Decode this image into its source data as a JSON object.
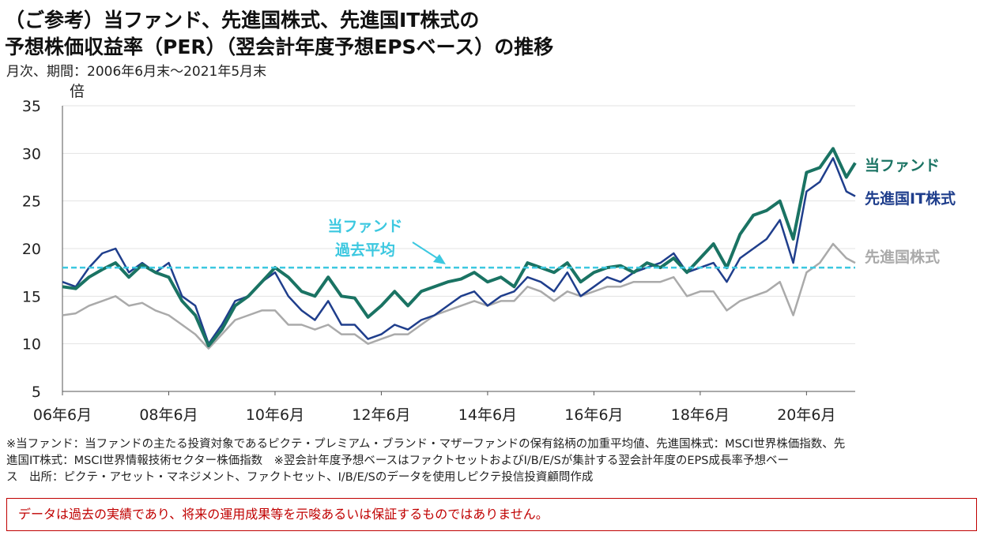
{
  "title_line1": "（ご参考）当ファンド、先進国株式、先進国IT株式の",
  "title_line2": "予想株価収益率（PER）（翌会計年度予想EPSベース）の推移",
  "subtitle": "月次、期間：2006年6月末～2021年5月末",
  "notes": [
    "※当ファンド：当ファンドの主たる投資対象であるピクテ・プレミアム・ブランド・マザーファンドの保有銘柄の加重平均値、先進国株式：MSCI世界株価指数、先",
    "進国IT株式：MSCI世界情報技術セクター株価指数　※翌会計年度予想ベースはファクトセットおよびI/B/E/Sが集計する翌会計年度のEPS成長率予想ベー",
    "ス　出所：ピクテ・アセット・マネジメント、ファクトセット、I/B/E/Sのデータを使用しピクテ投信投資顧問作成"
  ],
  "disclaimer": "データは過去の実績であり、将来の運用成果等を示唆あるいは保証するものではありません。",
  "chart_data": {
    "type": "line",
    "ylabel": "倍",
    "ylim": [
      5,
      35
    ],
    "yticks": [
      5,
      10,
      15,
      20,
      25,
      30,
      35
    ],
    "x_range": [
      "2006-06",
      "2021-05"
    ],
    "xticks": [
      {
        "date": "2006-06",
        "label": "06年6月"
      },
      {
        "date": "2008-06",
        "label": "08年6月"
      },
      {
        "date": "2010-06",
        "label": "10年6月"
      },
      {
        "date": "2012-06",
        "label": "12年6月"
      },
      {
        "date": "2014-06",
        "label": "14年6月"
      },
      {
        "date": "2016-06",
        "label": "16年6月"
      },
      {
        "date": "2018-06",
        "label": "18年6月"
      },
      {
        "date": "2020-06",
        "label": "20年6月"
      }
    ],
    "grid": "horizontal",
    "series": [
      {
        "name": "当ファンド",
        "color": "#1a7363",
        "points": [
          [
            "2006-06",
            16.0
          ],
          [
            "2006-09",
            15.8
          ],
          [
            "2006-12",
            17.0
          ],
          [
            "2007-03",
            17.8
          ],
          [
            "2007-06",
            18.5
          ],
          [
            "2007-09",
            17.0
          ],
          [
            "2007-12",
            18.3
          ],
          [
            "2008-03",
            17.5
          ],
          [
            "2008-06",
            17.0
          ],
          [
            "2008-09",
            14.5
          ],
          [
            "2008-12",
            13.0
          ],
          [
            "2009-03",
            9.8
          ],
          [
            "2009-06",
            11.5
          ],
          [
            "2009-09",
            14.0
          ],
          [
            "2009-12",
            15.0
          ],
          [
            "2010-03",
            16.5
          ],
          [
            "2010-06",
            18.0
          ],
          [
            "2010-09",
            17.0
          ],
          [
            "2010-12",
            15.5
          ],
          [
            "2011-03",
            15.0
          ],
          [
            "2011-06",
            17.0
          ],
          [
            "2011-09",
            15.0
          ],
          [
            "2011-12",
            14.8
          ],
          [
            "2012-03",
            12.8
          ],
          [
            "2012-06",
            14.0
          ],
          [
            "2012-09",
            15.5
          ],
          [
            "2012-12",
            14.0
          ],
          [
            "2013-03",
            15.5
          ],
          [
            "2013-06",
            16.0
          ],
          [
            "2013-09",
            16.5
          ],
          [
            "2013-12",
            16.8
          ],
          [
            "2014-03",
            17.5
          ],
          [
            "2014-06",
            16.5
          ],
          [
            "2014-09",
            17.0
          ],
          [
            "2014-12",
            16.0
          ],
          [
            "2015-03",
            18.5
          ],
          [
            "2015-06",
            18.0
          ],
          [
            "2015-09",
            17.5
          ],
          [
            "2015-12",
            18.5
          ],
          [
            "2016-03",
            16.5
          ],
          [
            "2016-06",
            17.5
          ],
          [
            "2016-09",
            18.0
          ],
          [
            "2016-12",
            18.2
          ],
          [
            "2017-03",
            17.5
          ],
          [
            "2017-06",
            18.5
          ],
          [
            "2017-09",
            18.0
          ],
          [
            "2017-12",
            19.0
          ],
          [
            "2018-03",
            17.5
          ],
          [
            "2018-06",
            19.0
          ],
          [
            "2018-09",
            20.5
          ],
          [
            "2018-12",
            18.0
          ],
          [
            "2019-03",
            21.5
          ],
          [
            "2019-06",
            23.5
          ],
          [
            "2019-09",
            24.0
          ],
          [
            "2019-12",
            25.0
          ],
          [
            "2020-03",
            21.0
          ],
          [
            "2020-06",
            28.0
          ],
          [
            "2020-09",
            28.5
          ],
          [
            "2020-12",
            30.5
          ],
          [
            "2021-03",
            27.5
          ],
          [
            "2021-05",
            29.0
          ]
        ]
      },
      {
        "name": "先進国IT株式",
        "color": "#1f3e8c",
        "points": [
          [
            "2006-06",
            16.5
          ],
          [
            "2006-09",
            16.0
          ],
          [
            "2006-12",
            18.0
          ],
          [
            "2007-03",
            19.5
          ],
          [
            "2007-06",
            20.0
          ],
          [
            "2007-09",
            17.5
          ],
          [
            "2007-12",
            18.5
          ],
          [
            "2008-03",
            17.5
          ],
          [
            "2008-06",
            18.5
          ],
          [
            "2008-09",
            15.0
          ],
          [
            "2008-12",
            14.0
          ],
          [
            "2009-03",
            10.0
          ],
          [
            "2009-06",
            12.0
          ],
          [
            "2009-09",
            14.5
          ],
          [
            "2009-12",
            15.0
          ],
          [
            "2010-03",
            16.5
          ],
          [
            "2010-06",
            17.5
          ],
          [
            "2010-09",
            15.0
          ],
          [
            "2010-12",
            13.5
          ],
          [
            "2011-03",
            12.5
          ],
          [
            "2011-06",
            14.5
          ],
          [
            "2011-09",
            12.0
          ],
          [
            "2011-12",
            12.0
          ],
          [
            "2012-03",
            10.5
          ],
          [
            "2012-06",
            11.0
          ],
          [
            "2012-09",
            12.0
          ],
          [
            "2012-12",
            11.5
          ],
          [
            "2013-03",
            12.5
          ],
          [
            "2013-06",
            13.0
          ],
          [
            "2013-09",
            14.0
          ],
          [
            "2013-12",
            15.0
          ],
          [
            "2014-03",
            15.5
          ],
          [
            "2014-06",
            14.0
          ],
          [
            "2014-09",
            15.0
          ],
          [
            "2014-12",
            15.5
          ],
          [
            "2015-03",
            17.0
          ],
          [
            "2015-06",
            16.5
          ],
          [
            "2015-09",
            15.5
          ],
          [
            "2015-12",
            17.5
          ],
          [
            "2016-03",
            15.0
          ],
          [
            "2016-06",
            16.0
          ],
          [
            "2016-09",
            17.0
          ],
          [
            "2016-12",
            16.5
          ],
          [
            "2017-03",
            17.5
          ],
          [
            "2017-06",
            18.0
          ],
          [
            "2017-09",
            18.5
          ],
          [
            "2017-12",
            19.5
          ],
          [
            "2018-03",
            17.5
          ],
          [
            "2018-06",
            18.0
          ],
          [
            "2018-09",
            18.5
          ],
          [
            "2018-12",
            16.5
          ],
          [
            "2019-03",
            19.0
          ],
          [
            "2019-06",
            20.0
          ],
          [
            "2019-09",
            21.0
          ],
          [
            "2019-12",
            23.0
          ],
          [
            "2020-03",
            18.5
          ],
          [
            "2020-06",
            26.0
          ],
          [
            "2020-09",
            27.0
          ],
          [
            "2020-12",
            29.5
          ],
          [
            "2021-03",
            26.0
          ],
          [
            "2021-05",
            25.5
          ]
        ]
      },
      {
        "name": "先進国株式",
        "color": "#aaaaaa",
        "points": [
          [
            "2006-06",
            13.0
          ],
          [
            "2006-09",
            13.2
          ],
          [
            "2006-12",
            14.0
          ],
          [
            "2007-03",
            14.5
          ],
          [
            "2007-06",
            15.0
          ],
          [
            "2007-09",
            14.0
          ],
          [
            "2007-12",
            14.3
          ],
          [
            "2008-03",
            13.5
          ],
          [
            "2008-06",
            13.0
          ],
          [
            "2008-09",
            12.0
          ],
          [
            "2008-12",
            11.0
          ],
          [
            "2009-03",
            9.5
          ],
          [
            "2009-06",
            11.0
          ],
          [
            "2009-09",
            12.5
          ],
          [
            "2009-12",
            13.0
          ],
          [
            "2010-03",
            13.5
          ],
          [
            "2010-06",
            13.5
          ],
          [
            "2010-09",
            12.0
          ],
          [
            "2010-12",
            12.0
          ],
          [
            "2011-03",
            11.5
          ],
          [
            "2011-06",
            12.0
          ],
          [
            "2011-09",
            11.0
          ],
          [
            "2011-12",
            11.0
          ],
          [
            "2012-03",
            10.0
          ],
          [
            "2012-06",
            10.5
          ],
          [
            "2012-09",
            11.0
          ],
          [
            "2012-12",
            11.0
          ],
          [
            "2013-03",
            12.0
          ],
          [
            "2013-06",
            13.0
          ],
          [
            "2013-09",
            13.5
          ],
          [
            "2013-12",
            14.0
          ],
          [
            "2014-03",
            14.5
          ],
          [
            "2014-06",
            14.0
          ],
          [
            "2014-09",
            14.5
          ],
          [
            "2014-12",
            14.5
          ],
          [
            "2015-03",
            16.0
          ],
          [
            "2015-06",
            15.5
          ],
          [
            "2015-09",
            14.5
          ],
          [
            "2015-12",
            15.5
          ],
          [
            "2016-03",
            15.0
          ],
          [
            "2016-06",
            15.5
          ],
          [
            "2016-09",
            16.0
          ],
          [
            "2016-12",
            16.0
          ],
          [
            "2017-03",
            16.5
          ],
          [
            "2017-06",
            16.5
          ],
          [
            "2017-09",
            16.5
          ],
          [
            "2017-12",
            17.0
          ],
          [
            "2018-03",
            15.0
          ],
          [
            "2018-06",
            15.5
          ],
          [
            "2018-09",
            15.5
          ],
          [
            "2018-12",
            13.5
          ],
          [
            "2019-03",
            14.5
          ],
          [
            "2019-06",
            15.0
          ],
          [
            "2019-09",
            15.5
          ],
          [
            "2019-12",
            16.5
          ],
          [
            "2020-03",
            13.0
          ],
          [
            "2020-06",
            17.5
          ],
          [
            "2020-09",
            18.5
          ],
          [
            "2020-12",
            20.5
          ],
          [
            "2021-03",
            19.0
          ],
          [
            "2021-05",
            18.5
          ]
        ]
      }
    ],
    "reference_line": {
      "name": "当ファンド過去平均",
      "label_lines": [
        "当ファンド",
        "過去平均"
      ],
      "value": 18.0,
      "color": "#3cc8e0"
    }
  }
}
